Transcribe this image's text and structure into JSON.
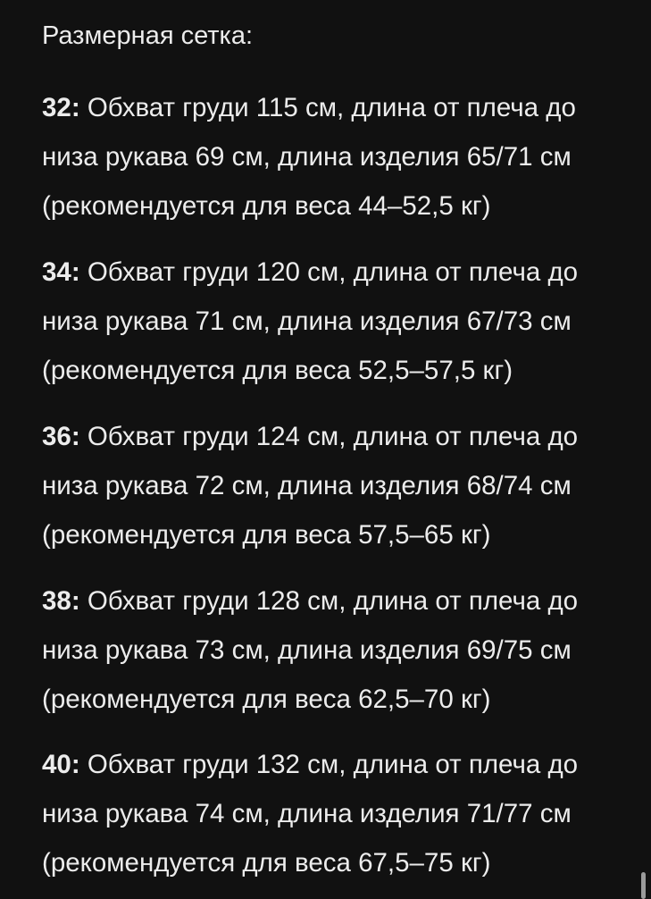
{
  "title": "Размерная сетка:",
  "sizes": [
    {
      "size": "32:",
      "line1": " Обхват груди 115 см, длина от плеча до",
      "line2": "низа рукава 69 см, длина изделия 65/71 см",
      "line3": "(рекомендуется для веса 44–52,5 кг)"
    },
    {
      "size": "34:",
      "line1": " Обхват груди 120 см, длина от плеча до",
      "line2": "низа рукава 71 см, длина изделия 67/73 см",
      "line3": "(рекомендуется для веса 52,5–57,5 кг)"
    },
    {
      "size": "36:",
      "line1": " Обхват груди 124 см, длина от плеча до",
      "line2": "низа рукава 72 см, длина изделия 68/74 см",
      "line3": "(рекомендуется для веса 57,5–65 кг)"
    },
    {
      "size": "38:",
      "line1": " Обхват груди 128 см, длина от плеча до",
      "line2": "низа рукава 73 см, длина изделия 69/75 см",
      "line3": "(рекомендуется для веса 62,5–70 кг)"
    },
    {
      "size": "40:",
      "line1": " Обхват груди 132 см, длина от плеча до",
      "line2": "низа рукава 74 см, длина изделия 71/77 см",
      "line3": "(рекомендуется для веса 67,5–75 кг)"
    }
  ]
}
